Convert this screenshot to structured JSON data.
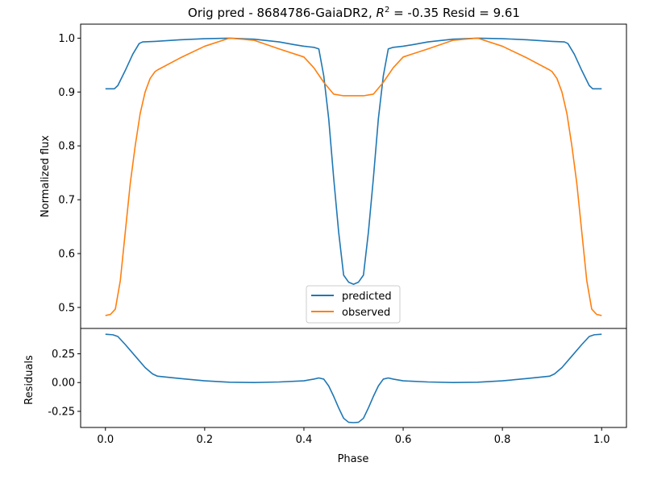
{
  "chart_data": [
    {
      "type": "line",
      "title_prefix": "Orig pred - 8684786-GaiaDR2, ",
      "title_r": "R",
      "title_sup": "2",
      "title_suffix": " = -0.35 Resid = 9.61",
      "xlabel": "",
      "ylabel": "Normalized flux",
      "xlim": [
        -0.05,
        1.05
      ],
      "ylim": [
        0.461,
        1.026
      ],
      "yticks": [
        "0.5",
        "0.6",
        "0.7",
        "0.8",
        "0.9",
        "1.0"
      ],
      "legend_position": "lower center",
      "series": [
        {
          "name": "predicted",
          "color": "#1f77b4",
          "points": [
            [
              0.0,
              0.906
            ],
            [
              0.018,
              0.906
            ],
            [
              0.025,
              0.912
            ],
            [
              0.04,
              0.94
            ],
            [
              0.055,
              0.97
            ],
            [
              0.068,
              0.99
            ],
            [
              0.075,
              0.993
            ],
            [
              0.1,
              0.994
            ],
            [
              0.15,
              0.997
            ],
            [
              0.2,
              0.999
            ],
            [
              0.25,
              1.0
            ],
            [
              0.3,
              0.998
            ],
            [
              0.35,
              0.993
            ],
            [
              0.38,
              0.988
            ],
            [
              0.4,
              0.985
            ],
            [
              0.42,
              0.983
            ],
            [
              0.43,
              0.98
            ],
            [
              0.44,
              0.93
            ],
            [
              0.45,
              0.85
            ],
            [
              0.46,
              0.74
            ],
            [
              0.47,
              0.64
            ],
            [
              0.48,
              0.56
            ],
            [
              0.49,
              0.547
            ],
            [
              0.5,
              0.543
            ],
            [
              0.51,
              0.547
            ],
            [
              0.52,
              0.56
            ],
            [
              0.53,
              0.64
            ],
            [
              0.54,
              0.74
            ],
            [
              0.55,
              0.85
            ],
            [
              0.56,
              0.93
            ],
            [
              0.57,
              0.98
            ],
            [
              0.58,
              0.983
            ],
            [
              0.6,
              0.985
            ],
            [
              0.62,
              0.988
            ],
            [
              0.65,
              0.993
            ],
            [
              0.7,
              0.998
            ],
            [
              0.75,
              1.0
            ],
            [
              0.8,
              0.999
            ],
            [
              0.85,
              0.997
            ],
            [
              0.9,
              0.994
            ],
            [
              0.925,
              0.993
            ],
            [
              0.932,
              0.99
            ],
            [
              0.945,
              0.97
            ],
            [
              0.96,
              0.94
            ],
            [
              0.975,
              0.912
            ],
            [
              0.982,
              0.906
            ],
            [
              1.0,
              0.906
            ]
          ]
        },
        {
          "name": "observed",
          "color": "#ff7f0e",
          "points": [
            [
              0.0,
              0.485
            ],
            [
              0.01,
              0.487
            ],
            [
              0.02,
              0.497
            ],
            [
              0.03,
              0.55
            ],
            [
              0.04,
              0.64
            ],
            [
              0.05,
              0.73
            ],
            [
              0.06,
              0.8
            ],
            [
              0.07,
              0.86
            ],
            [
              0.08,
              0.9
            ],
            [
              0.09,
              0.925
            ],
            [
              0.1,
              0.938
            ],
            [
              0.105,
              0.941
            ],
            [
              0.15,
              0.963
            ],
            [
              0.2,
              0.985
            ],
            [
              0.25,
              1.0
            ],
            [
              0.3,
              0.996
            ],
            [
              0.35,
              0.98
            ],
            [
              0.4,
              0.965
            ],
            [
              0.42,
              0.945
            ],
            [
              0.44,
              0.918
            ],
            [
              0.46,
              0.896
            ],
            [
              0.48,
              0.893
            ],
            [
              0.5,
              0.893
            ],
            [
              0.52,
              0.893
            ],
            [
              0.54,
              0.896
            ],
            [
              0.56,
              0.918
            ],
            [
              0.58,
              0.945
            ],
            [
              0.6,
              0.965
            ],
            [
              0.65,
              0.98
            ],
            [
              0.7,
              0.996
            ],
            [
              0.75,
              1.0
            ],
            [
              0.8,
              0.985
            ],
            [
              0.85,
              0.963
            ],
            [
              0.895,
              0.941
            ],
            [
              0.9,
              0.938
            ],
            [
              0.91,
              0.925
            ],
            [
              0.92,
              0.9
            ],
            [
              0.93,
              0.86
            ],
            [
              0.94,
              0.8
            ],
            [
              0.95,
              0.73
            ],
            [
              0.96,
              0.64
            ],
            [
              0.97,
              0.55
            ],
            [
              0.98,
              0.497
            ],
            [
              0.99,
              0.487
            ],
            [
              1.0,
              0.485
            ]
          ]
        }
      ]
    },
    {
      "type": "line",
      "xlabel": "Phase",
      "ylabel": "Residuals",
      "xlim": [
        -0.05,
        1.05
      ],
      "ylim": [
        -0.39,
        0.47
      ],
      "xticks": [
        "0.0",
        "0.2",
        "0.4",
        "0.6",
        "0.8",
        "1.0"
      ],
      "yticks": [
        "-0.25",
        "0.00",
        "0.25"
      ],
      "series": [
        {
          "color": "#1f77b4",
          "points": [
            [
              0.0,
              0.42
            ],
            [
              0.015,
              0.415
            ],
            [
              0.025,
              0.4
            ],
            [
              0.04,
              0.33
            ],
            [
              0.06,
              0.23
            ],
            [
              0.08,
              0.13
            ],
            [
              0.095,
              0.075
            ],
            [
              0.105,
              0.055
            ],
            [
              0.15,
              0.035
            ],
            [
              0.2,
              0.015
            ],
            [
              0.25,
              0.003
            ],
            [
              0.3,
              0.0
            ],
            [
              0.35,
              0.005
            ],
            [
              0.4,
              0.015
            ],
            [
              0.42,
              0.03
            ],
            [
              0.43,
              0.04
            ],
            [
              0.44,
              0.03
            ],
            [
              0.45,
              -0.03
            ],
            [
              0.46,
              -0.12
            ],
            [
              0.47,
              -0.22
            ],
            [
              0.48,
              -0.31
            ],
            [
              0.49,
              -0.345
            ],
            [
              0.5,
              -0.348
            ],
            [
              0.51,
              -0.345
            ],
            [
              0.52,
              -0.31
            ],
            [
              0.53,
              -0.22
            ],
            [
              0.54,
              -0.12
            ],
            [
              0.55,
              -0.03
            ],
            [
              0.56,
              0.03
            ],
            [
              0.57,
              0.04
            ],
            [
              0.58,
              0.03
            ],
            [
              0.6,
              0.015
            ],
            [
              0.65,
              0.005
            ],
            [
              0.7,
              0.0
            ],
            [
              0.75,
              0.003
            ],
            [
              0.8,
              0.015
            ],
            [
              0.85,
              0.035
            ],
            [
              0.895,
              0.055
            ],
            [
              0.905,
              0.075
            ],
            [
              0.92,
              0.13
            ],
            [
              0.94,
              0.23
            ],
            [
              0.96,
              0.33
            ],
            [
              0.975,
              0.4
            ],
            [
              0.985,
              0.415
            ],
            [
              1.0,
              0.42
            ]
          ]
        }
      ]
    }
  ]
}
